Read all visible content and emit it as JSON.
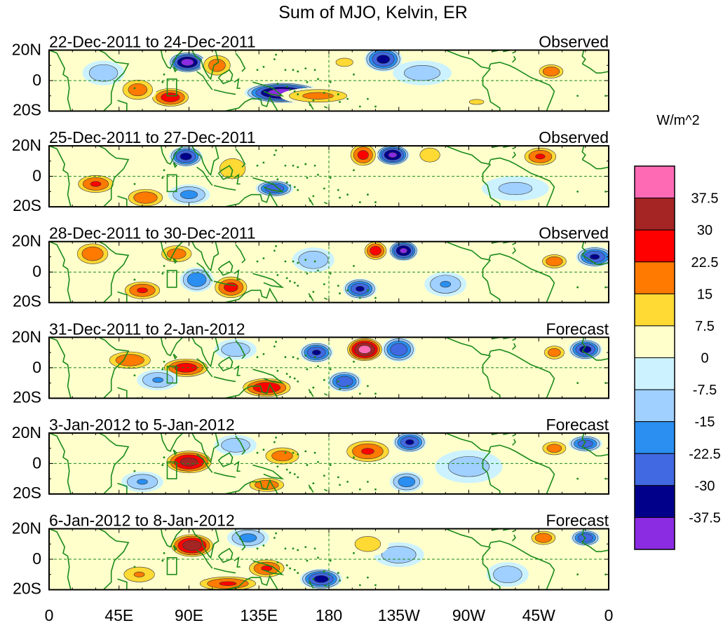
{
  "chart_data": {
    "type": "heatmap",
    "title": "Sum of MJO, Kelvin, ER",
    "units": "W/m^2",
    "lon_ticks": [
      "0",
      "45E",
      "90E",
      "135E",
      "180",
      "135W",
      "90W",
      "45W",
      "0"
    ],
    "lat_ticks": [
      "20N",
      "0",
      "20S"
    ],
    "xlim": [
      0,
      360
    ],
    "ylim": [
      -20,
      20
    ],
    "colorbar": {
      "levels": [
        "37.5",
        "30",
        "22.5",
        "15",
        "7.5",
        "0",
        "-7.5",
        "-15",
        "-22.5",
        "-30",
        "-37.5"
      ],
      "colors": [
        "#ff6ab4",
        "#a52424",
        "#ff0000",
        "#ff7a00",
        "#ffd934",
        "#ffffcc",
        "#ccf2ff",
        "#a0d0ff",
        "#2a8ff0",
        "#4169e1",
        "#00008b",
        "#8b2be2"
      ]
    },
    "panels": [
      {
        "period": "22-Dec-2011 to 24-Dec-2011",
        "kind": "Observed",
        "anomalies": [
          {
            "lon": 89,
            "lat": 12,
            "value": -42,
            "rlon": 9,
            "rlat": 5
          },
          {
            "lon": 150,
            "lat": -8,
            "value": -44,
            "rlon": 18,
            "rlat": 5
          },
          {
            "lon": 215,
            "lat": 14,
            "value": -34,
            "rlon": 9,
            "rlat": 6
          },
          {
            "lon": 78,
            "lat": -11,
            "value": 28,
            "rlon": 10,
            "rlat": 5
          },
          {
            "lon": 57,
            "lat": -6,
            "value": 20,
            "rlon": 9,
            "rlat": 6
          },
          {
            "lon": 108,
            "lat": 10,
            "value": 20,
            "rlon": 8,
            "rlat": 6
          },
          {
            "lon": 173,
            "lat": -10,
            "value": 18,
            "rlon": 18,
            "rlat": 4
          },
          {
            "lon": 323,
            "lat": 6,
            "value": 22,
            "rlon": 7,
            "rlat": 4
          },
          {
            "lon": 35,
            "lat": 5,
            "value": -14,
            "rlon": 10,
            "rlat": 6
          },
          {
            "lon": 240,
            "lat": 5,
            "value": -12,
            "rlon": 14,
            "rlat": 6
          },
          {
            "lon": 190,
            "lat": 12,
            "value": 9,
            "rlon": 10,
            "rlat": 5
          },
          {
            "lon": 275,
            "lat": -14,
            "value": 8,
            "rlon": 14,
            "rlat": 5
          }
        ]
      },
      {
        "period": "25-Dec-2011 to 27-Dec-2011",
        "kind": "Observed",
        "anomalies": [
          {
            "lon": 88,
            "lat": 13,
            "value": -34,
            "rlon": 8,
            "rlat": 5
          },
          {
            "lon": 145,
            "lat": -8,
            "value": -30,
            "rlon": 9,
            "rlat": 4
          },
          {
            "lon": 221,
            "lat": 14,
            "value": -40,
            "rlon": 8,
            "rlat": 5
          },
          {
            "lon": 202,
            "lat": 14,
            "value": 26,
            "rlon": 7,
            "rlat": 6
          },
          {
            "lon": 316,
            "lat": 13,
            "value": 24,
            "rlon": 9,
            "rlat": 5
          },
          {
            "lon": 30,
            "lat": -5,
            "value": 24,
            "rlon": 10,
            "rlat": 5
          },
          {
            "lon": 62,
            "lat": -14,
            "value": 22,
            "rlon": 10,
            "rlat": 5
          },
          {
            "lon": 118,
            "lat": 5,
            "value": 12,
            "rlon": 10,
            "rlat": 8
          },
          {
            "lon": 245,
            "lat": 14,
            "value": 14,
            "rlon": 7,
            "rlat": 5
          },
          {
            "lon": 90,
            "lat": -12,
            "value": -18,
            "rlon": 10,
            "rlat": 5
          },
          {
            "lon": 300,
            "lat": -8,
            "value": -10,
            "rlon": 16,
            "rlat": 6
          }
        ]
      },
      {
        "period": "28-Dec-2011 to 30-Dec-2011",
        "kind": "Observed",
        "anomalies": [
          {
            "lon": 228,
            "lat": 14,
            "value": -40,
            "rlon": 7,
            "rlat": 5
          },
          {
            "lon": 200,
            "lat": -11,
            "value": -32,
            "rlon": 8,
            "rlat": 5
          },
          {
            "lon": 210,
            "lat": 14,
            "value": 28,
            "rlon": 6,
            "rlat": 5
          },
          {
            "lon": 117,
            "lat": -10,
            "value": 26,
            "rlon": 9,
            "rlat": 6
          },
          {
            "lon": 28,
            "lat": 12,
            "value": 22,
            "rlon": 9,
            "rlat": 6
          },
          {
            "lon": 60,
            "lat": -12,
            "value": 24,
            "rlon": 10,
            "rlat": 5
          },
          {
            "lon": 82,
            "lat": 12,
            "value": 20,
            "rlon": 9,
            "rlat": 5
          },
          {
            "lon": 325,
            "lat": 7,
            "value": 22,
            "rlon": 7,
            "rlat": 4
          },
          {
            "lon": 351,
            "lat": 10,
            "value": -32,
            "rlon": 9,
            "rlat": 5
          },
          {
            "lon": 95,
            "lat": -5,
            "value": -22,
            "rlon": 8,
            "rlat": 6
          },
          {
            "lon": 170,
            "lat": 8,
            "value": -15,
            "rlon": 10,
            "rlat": 6
          },
          {
            "lon": 255,
            "lat": -8,
            "value": -16,
            "rlon": 10,
            "rlat": 6
          }
        ]
      },
      {
        "period": "31-Dec-2011 to 2-Jan-2012",
        "kind": "Forecast",
        "anomalies": [
          {
            "lon": 203,
            "lat": 12,
            "value": 42,
            "rlon": 9,
            "rlat": 6
          },
          {
            "lon": 140,
            "lat": -13,
            "value": 30,
            "rlon": 13,
            "rlat": 5
          },
          {
            "lon": 88,
            "lat": 0,
            "value": 28,
            "rlon": 12,
            "rlat": 5
          },
          {
            "lon": 52,
            "lat": 5,
            "value": 22,
            "rlon": 12,
            "rlat": 5
          },
          {
            "lon": 225,
            "lat": 12,
            "value": -30,
            "rlon": 8,
            "rlat": 6
          },
          {
            "lon": 172,
            "lat": 10,
            "value": -32,
            "rlon": 8,
            "rlat": 5
          },
          {
            "lon": 345,
            "lat": 12,
            "value": -34,
            "rlon": 8,
            "rlat": 5
          },
          {
            "lon": 190,
            "lat": -9,
            "value": -30,
            "rlon": 8,
            "rlat": 5
          },
          {
            "lon": 325,
            "lat": 10,
            "value": 20,
            "rlon": 6,
            "rlat": 4
          },
          {
            "lon": 70,
            "lat": -8,
            "value": -16,
            "rlon": 10,
            "rlat": 5
          },
          {
            "lon": 120,
            "lat": 12,
            "value": -14,
            "rlon": 10,
            "rlat": 5
          }
        ]
      },
      {
        "period": "3-Jan-2012 to 5-Jan-2012",
        "kind": "Forecast",
        "anomalies": [
          {
            "lon": 90,
            "lat": 1,
            "value": 34,
            "rlon": 12,
            "rlat": 6
          },
          {
            "lon": 205,
            "lat": 8,
            "value": 24,
            "rlon": 12,
            "rlat": 6
          },
          {
            "lon": 150,
            "lat": 5,
            "value": 20,
            "rlon": 10,
            "rlat": 5
          },
          {
            "lon": 140,
            "lat": -14,
            "value": 22,
            "rlon": 10,
            "rlat": 4
          },
          {
            "lon": 325,
            "lat": 10,
            "value": 20,
            "rlon": 7,
            "rlat": 4
          },
          {
            "lon": 232,
            "lat": 14,
            "value": -32,
            "rlon": 8,
            "rlat": 5
          },
          {
            "lon": 230,
            "lat": -12,
            "value": -20,
            "rlon": 8,
            "rlat": 5
          },
          {
            "lon": 345,
            "lat": 13,
            "value": -28,
            "rlon": 8,
            "rlat": 4
          },
          {
            "lon": 60,
            "lat": -12,
            "value": -16,
            "rlon": 10,
            "rlat": 5
          },
          {
            "lon": 120,
            "lat": 12,
            "value": -14,
            "rlon": 10,
            "rlat": 5
          },
          {
            "lon": 270,
            "lat": -2,
            "value": -12,
            "rlon": 16,
            "rlat": 8
          }
        ]
      },
      {
        "period": "6-Jan-2012 to 8-Jan-2012",
        "kind": "Forecast",
        "anomalies": [
          {
            "lon": 92,
            "lat": 9,
            "value": 36,
            "rlon": 11,
            "rlat": 6
          },
          {
            "lon": 58,
            "lat": -10,
            "value": 16,
            "rlon": 10,
            "rlat": 5
          },
          {
            "lon": 140,
            "lat": -6,
            "value": 24,
            "rlon": 10,
            "rlat": 5
          },
          {
            "lon": 115,
            "lat": -16,
            "value": 24,
            "rlon": 16,
            "rlat": 4
          },
          {
            "lon": 318,
            "lat": 14,
            "value": 22,
            "rlon": 7,
            "rlat": 4
          },
          {
            "lon": 175,
            "lat": -13,
            "value": -34,
            "rlon": 10,
            "rlat": 5
          },
          {
            "lon": 128,
            "lat": 14,
            "value": -18,
            "rlon": 10,
            "rlat": 5
          },
          {
            "lon": 345,
            "lat": 14,
            "value": -30,
            "rlon": 7,
            "rlat": 4
          },
          {
            "lon": 225,
            "lat": 3,
            "value": -14,
            "rlon": 12,
            "rlat": 6
          },
          {
            "lon": 295,
            "lat": -10,
            "value": -14,
            "rlon": 10,
            "rlat": 6
          },
          {
            "lon": 205,
            "lat": 10,
            "value": 12,
            "rlon": 10,
            "rlat": 6
          }
        ]
      }
    ]
  }
}
